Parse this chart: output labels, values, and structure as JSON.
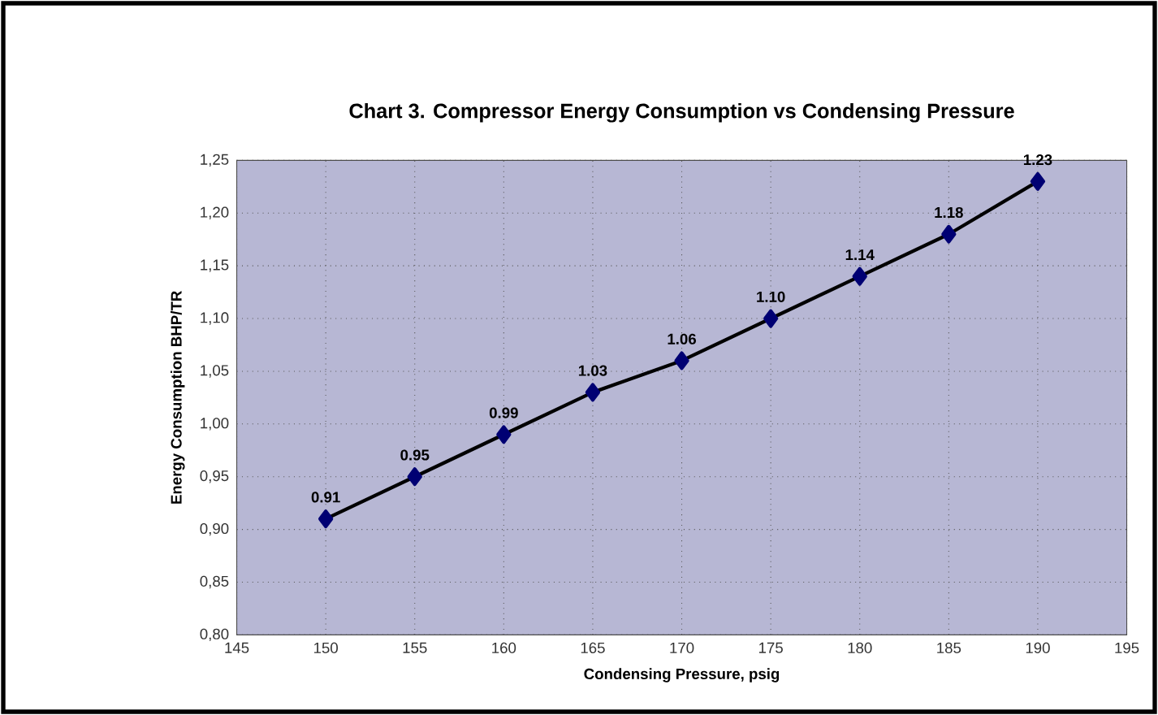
{
  "chart_data": {
    "type": "line",
    "title": "Chart 3. Compressor Energy Consumption vs Condensing Pressure",
    "xlabel": "Condensing Pressure, psig",
    "ylabel": "Energy Consumption BHP/TR",
    "x": [
      150,
      155,
      160,
      165,
      170,
      175,
      180,
      185,
      190
    ],
    "series": [
      {
        "color": "#000000",
        "values": [
          0.91,
          0.95,
          0.99,
          1.03,
          1.06,
          1.1,
          1.14,
          1.18,
          1.23
        ],
        "value_labels": [
          "0.91",
          "0.95",
          "0.99",
          "1.03",
          "1.06",
          "1.10",
          "1.14",
          "1.18",
          "1.23"
        ]
      }
    ],
    "marker": "diamond",
    "line_style": "solid",
    "xlim": [
      145,
      195
    ],
    "xticks": [
      145,
      150,
      155,
      160,
      165,
      170,
      175,
      180,
      185,
      190,
      195
    ],
    "ylim": [
      0.8,
      1.25
    ],
    "yticks": [
      {
        "value": 0.8,
        "label": "0,80"
      },
      {
        "value": 0.85,
        "label": "0,85"
      },
      {
        "value": 0.9,
        "label": "0,90"
      },
      {
        "value": 0.95,
        "label": "0,95"
      },
      {
        "value": 1.0,
        "label": "1,00"
      },
      {
        "value": 1.05,
        "label": "1,05"
      },
      {
        "value": 1.1,
        "label": "1,10"
      },
      {
        "value": 1.15,
        "label": "1,15"
      },
      {
        "value": 1.2,
        "label": "1,20"
      },
      {
        "value": 1.25,
        "label": "1,25"
      }
    ],
    "grid": true
  }
}
